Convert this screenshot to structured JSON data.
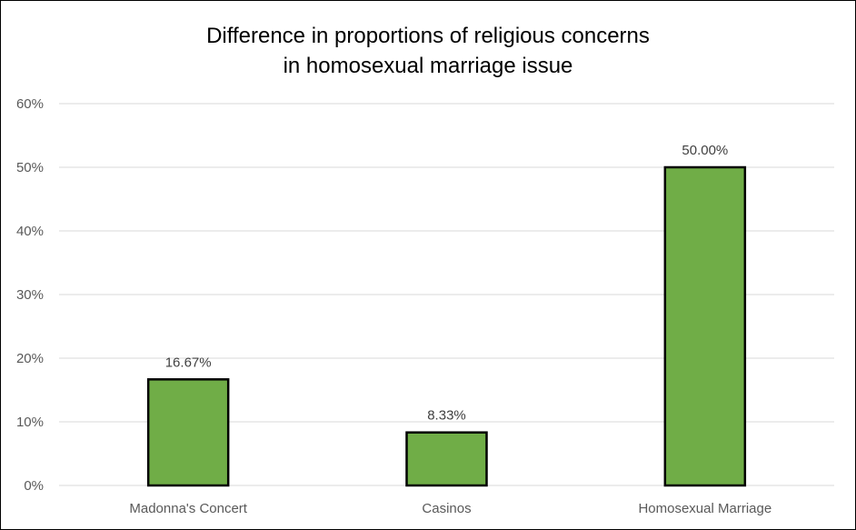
{
  "chart_data": {
    "type": "bar",
    "title_lines": [
      "Difference in proportions of religious concerns",
      "in homosexual marriage issue"
    ],
    "categories": [
      "Madonna's Concert",
      "Casinos",
      "Homosexual Marriage"
    ],
    "values": [
      16.67,
      8.33,
      50.0
    ],
    "data_labels": [
      "16.67%",
      "8.33%",
      "50.00%"
    ],
    "y_ticks": [
      0,
      10,
      20,
      30,
      40,
      50,
      60
    ],
    "y_tick_labels": [
      "0%",
      "10%",
      "20%",
      "30%",
      "40%",
      "50%",
      "60%"
    ],
    "ylim": [
      0,
      60
    ],
    "grid": true,
    "legend": "none",
    "xlabel": "",
    "ylabel": "",
    "colors": {
      "bar_fill": "#70ad47",
      "bar_stroke": "#000000",
      "gridline": "#d9d9d9",
      "axis_line": "#d9d9d9"
    }
  }
}
